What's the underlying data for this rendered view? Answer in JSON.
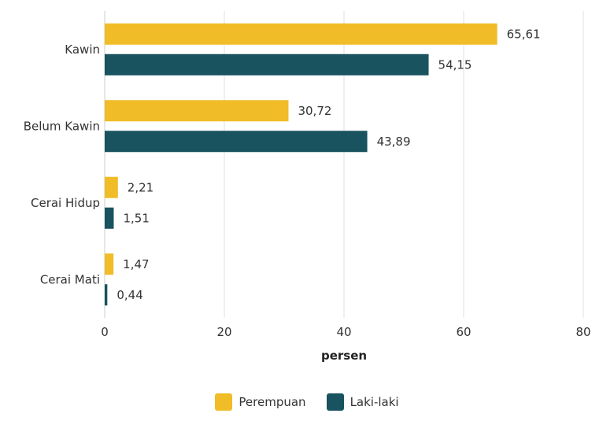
{
  "chart_data": {
    "type": "bar",
    "orientation": "horizontal",
    "categories": [
      "Kawin",
      "Belum Kawin",
      "Cerai Hidup",
      "Cerai Mati"
    ],
    "series": [
      {
        "name": "Perempuan",
        "color": "#F0BC27",
        "values": [
          65.61,
          30.72,
          2.21,
          1.47
        ],
        "labels": [
          "65,61",
          "30,72",
          "2,21",
          "1,47"
        ]
      },
      {
        "name": "Laki-laki",
        "color": "#18535F",
        "values": [
          54.15,
          43.89,
          1.51,
          0.44
        ],
        "labels": [
          "54,15",
          "43,89",
          "1,51",
          "0,44"
        ]
      }
    ],
    "title": "",
    "xlabel": "persen",
    "ylabel": "",
    "xlim": [
      0,
      80
    ],
    "xticks": [
      0,
      20,
      40,
      60,
      80
    ],
    "grid": true,
    "legend_position": "bottom"
  }
}
